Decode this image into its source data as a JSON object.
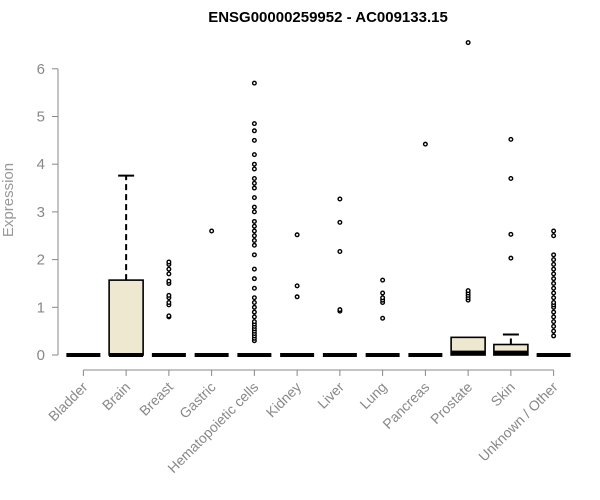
{
  "chart_data": {
    "type": "boxplot",
    "title": "ENSG00000259952 - AC009133.15",
    "ylabel": "Expression",
    "xlabel": "",
    "ylim": [
      0,
      6.6
    ],
    "yticks": [
      "0",
      "1",
      "2",
      "3",
      "4",
      "5",
      "6"
    ],
    "grid": false,
    "legend": "none",
    "box_fill": "#EEE8D0",
    "outlier_color": "#000000",
    "categories": [
      "Bladder",
      "Brain",
      "Breast",
      "Gastric",
      "Hematopoietic cells",
      "Kidney",
      "Liver",
      "Lung",
      "Pancreas",
      "Prostate",
      "Skin",
      "Unknown / Other"
    ],
    "boxes": [
      {
        "min": 0,
        "q1": 0,
        "median": 0,
        "q3": 0,
        "max": 0,
        "outliers": []
      },
      {
        "min": 0,
        "q1": 0,
        "median": 0,
        "q3": 1.57,
        "max": 3.76,
        "outliers": []
      },
      {
        "min": 0,
        "q1": 0,
        "median": 0,
        "q3": 0,
        "max": 0,
        "outliers": [
          0.8,
          0.82,
          1.05,
          1.1,
          1.2,
          1.25,
          1.5,
          1.55,
          1.7,
          1.8,
          1.9,
          1.95
        ]
      },
      {
        "min": 0,
        "q1": 0,
        "median": 0,
        "q3": 0,
        "max": 0,
        "outliers": [
          2.6
        ]
      },
      {
        "min": 0,
        "q1": 0,
        "median": 0,
        "q3": 0,
        "max": 0,
        "outliers": [
          0.3,
          0.35,
          0.4,
          0.45,
          0.5,
          0.55,
          0.6,
          0.65,
          0.7,
          0.8,
          0.9,
          1.0,
          1.1,
          1.2,
          1.4,
          1.6,
          1.8,
          2.1,
          2.3,
          2.4,
          2.5,
          2.6,
          2.7,
          2.8,
          3.0,
          3.1,
          3.3,
          3.5,
          3.6,
          3.7,
          3.9,
          4.0,
          4.2,
          4.5,
          4.7,
          4.85,
          5.7
        ]
      },
      {
        "min": 0,
        "q1": 0,
        "median": 0,
        "q3": 0,
        "max": 0,
        "outliers": [
          1.22,
          1.45,
          2.52
        ]
      },
      {
        "min": 0,
        "q1": 0,
        "median": 0,
        "q3": 0,
        "max": 0,
        "outliers": [
          0.92,
          0.95,
          2.17,
          2.78,
          3.27
        ]
      },
      {
        "min": 0,
        "q1": 0,
        "median": 0,
        "q3": 0,
        "max": 0,
        "outliers": [
          0.77,
          1.1,
          1.15,
          1.2,
          1.3,
          1.57
        ]
      },
      {
        "min": 0,
        "q1": 0,
        "median": 0,
        "q3": 0,
        "max": 0,
        "outliers": [
          4.42
        ]
      },
      {
        "min": 0,
        "q1": 0,
        "median": 0.05,
        "q3": 0.37,
        "max": 0.37,
        "outliers": [
          1.15,
          1.2,
          1.25,
          1.3,
          1.35,
          6.55
        ]
      },
      {
        "min": 0,
        "q1": 0,
        "median": 0.05,
        "q3": 0.22,
        "max": 0.43,
        "outliers": [
          2.03,
          2.53,
          3.7,
          4.52
        ]
      },
      {
        "min": 0,
        "q1": 0,
        "median": 0,
        "q3": 0,
        "max": 0,
        "outliers": [
          0.4,
          0.5,
          0.6,
          0.7,
          0.8,
          0.9,
          1.0,
          1.05,
          1.1,
          1.2,
          1.3,
          1.4,
          1.5,
          1.6,
          1.7,
          1.8,
          1.9,
          2.0,
          2.1,
          2.5,
          2.6
        ]
      }
    ]
  }
}
